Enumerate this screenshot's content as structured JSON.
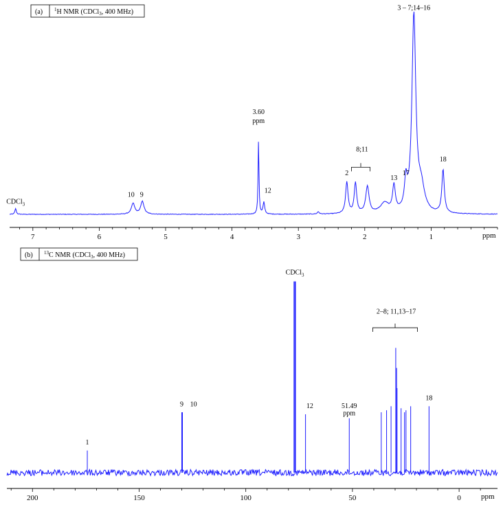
{
  "colors": {
    "trace": "#1a1aff",
    "axis": "#000000",
    "background": "#ffffff"
  },
  "chart_data": [
    {
      "type": "line",
      "panel_label": "(a)",
      "title_prefix": "1",
      "title_main": "H NMR  (CDCl",
      "title_sub": "3",
      "title_suffix": ", 400 MHz)",
      "xlabel": "ppm",
      "xlim": [
        7.35,
        0.0
      ],
      "reversed_x": true,
      "xticks": [
        "7",
        "6",
        "5",
        "4",
        "3",
        "2",
        "1"
      ],
      "xtick_values": [
        7,
        6,
        5,
        4,
        3,
        2,
        1
      ],
      "peaks": [
        {
          "ppm": 7.26,
          "height": 0.03,
          "width": 0.012
        },
        {
          "ppm": 5.49,
          "height": 0.055,
          "width": 0.03
        },
        {
          "ppm": 5.35,
          "height": 0.065,
          "width": 0.03
        },
        {
          "ppm": 3.6,
          "height": 0.38,
          "width": 0.008
        },
        {
          "ppm": 3.52,
          "height": 0.06,
          "width": 0.015
        },
        {
          "ppm": 2.7,
          "height": 0.012,
          "width": 0.015
        },
        {
          "ppm": 2.27,
          "height": 0.16,
          "width": 0.022
        },
        {
          "ppm": 2.14,
          "height": 0.155,
          "width": 0.022
        },
        {
          "ppm": 1.96,
          "height": 0.135,
          "width": 0.03
        },
        {
          "ppm": 1.7,
          "height": 0.05,
          "width": 0.08
        },
        {
          "ppm": 1.56,
          "height": 0.13,
          "width": 0.025
        },
        {
          "ppm": 1.38,
          "height": 0.14,
          "width": 0.025
        },
        {
          "ppm": 1.26,
          "height": 1.0,
          "width": 0.035
        },
        {
          "ppm": 1.15,
          "height": 0.12,
          "width": 0.06
        },
        {
          "ppm": 0.82,
          "height": 0.22,
          "width": 0.022
        }
      ],
      "labels": [
        {
          "text": "CDCl",
          "sub": "3",
          "ppm": 7.26,
          "y": 0.055
        },
        {
          "text": "10",
          "ppm": 5.52,
          "y": 0.09
        },
        {
          "text": "9",
          "ppm": 5.36,
          "y": 0.09
        },
        {
          "text": "3.60",
          "ppm": 3.6,
          "y": 0.51
        },
        {
          "text": "ppm",
          "ppm": 3.6,
          "y": 0.465
        },
        {
          "text": "12",
          "ppm": 3.46,
          "y": 0.11
        },
        {
          "text": "2",
          "ppm": 2.27,
          "y": 0.2
        },
        {
          "text": "8;11",
          "ppm": 2.04,
          "y": 0.32
        },
        {
          "text": "13",
          "ppm": 1.56,
          "y": 0.175
        },
        {
          "text": "17",
          "ppm": 1.38,
          "y": 0.2
        },
        {
          "text": "3 – 7;14–16",
          "ppm": 1.26,
          "y": 1.04
        },
        {
          "text": "18",
          "ppm": 0.82,
          "y": 0.27
        }
      ],
      "bracket": {
        "from_ppm": 2.2,
        "to_ppm": 1.92,
        "y": 0.24
      }
    },
    {
      "type": "line",
      "panel_label": "(b)",
      "title_prefix": "13",
      "title_main": "C NMR  (CDCl",
      "title_sub": "3",
      "title_suffix": ", 400 MHz)",
      "xlabel": "ppm",
      "xlim": [
        212,
        -18
      ],
      "reversed_x": true,
      "xticks": [
        "200",
        "150",
        "100",
        "50",
        "0"
      ],
      "xtick_values": [
        200,
        150,
        100,
        50,
        0
      ],
      "peaks": [
        {
          "ppm": 174.3,
          "height": 0.11
        },
        {
          "ppm": 130.0,
          "height": 0.3
        },
        {
          "ppm": 129.7,
          "height": 0.3
        },
        {
          "ppm": 72.0,
          "height": 0.29
        },
        {
          "ppm": 77.4,
          "height": 0.95
        },
        {
          "ppm": 77.0,
          "height": 0.95
        },
        {
          "ppm": 76.7,
          "height": 0.95
        },
        {
          "ppm": 51.49,
          "height": 0.27
        },
        {
          "ppm": 36.5,
          "height": 0.3
        },
        {
          "ppm": 34.0,
          "height": 0.31
        },
        {
          "ppm": 31.9,
          "height": 0.33
        },
        {
          "ppm": 29.7,
          "height": 0.62
        },
        {
          "ppm": 29.3,
          "height": 0.52
        },
        {
          "ppm": 29.1,
          "height": 0.42
        },
        {
          "ppm": 27.2,
          "height": 0.32
        },
        {
          "ppm": 25.6,
          "height": 0.3
        },
        {
          "ppm": 24.9,
          "height": 0.31
        },
        {
          "ppm": 22.7,
          "height": 0.33
        },
        {
          "ppm": 14.1,
          "height": 0.33
        }
      ],
      "labels": [
        {
          "text": "1",
          "ppm": 174.3,
          "y": 0.14
        },
        {
          "text": "9",
          "ppm": 130.0,
          "y": 0.33
        },
        {
          "text": "10",
          "ppm": 124.5,
          "y": 0.33
        },
        {
          "text": "CDCl",
          "sub": "3",
          "ppm": 77.0,
          "y": 0.985
        },
        {
          "text": "12",
          "ppm": 70.0,
          "y": 0.32
        },
        {
          "text": "51.49",
          "ppm": 51.49,
          "y": 0.32
        },
        {
          "text": "ppm",
          "ppm": 51.49,
          "y": 0.285
        },
        {
          "text": "2–8; 11,13–17",
          "ppm": 29.5,
          "y": 0.79
        },
        {
          "text": "18",
          "ppm": 14.1,
          "y": 0.36
        }
      ],
      "bracket": {
        "from_ppm": 40.5,
        "to_ppm": 19.5,
        "y": 0.72
      }
    }
  ]
}
